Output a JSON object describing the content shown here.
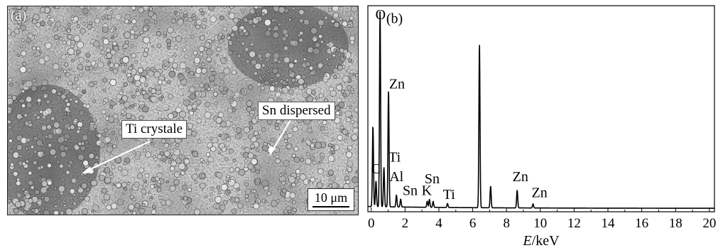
{
  "panel_a": {
    "label": "(a)",
    "annotations": {
      "ti": "Ti crystale",
      "sn": "Sn dispersed"
    },
    "scale_bar": "10 μm"
  },
  "chart_data": {
    "type": "line",
    "panel_label": "(b)",
    "title": "",
    "xlabel": "E/keV",
    "ylabel": "",
    "xlim": [
      -0.2,
      20.3
    ],
    "ylim": [
      0,
      100
    ],
    "xticks": [
      0,
      2,
      4,
      6,
      8,
      10,
      12,
      14,
      16,
      18,
      20
    ],
    "grid": false,
    "peaks": [
      {
        "x": 0.1,
        "y": 41
      },
      {
        "x": 0.28,
        "y": 13
      },
      {
        "x": 0.52,
        "y": 100
      },
      {
        "x": 0.75,
        "y": 20
      },
      {
        "x": 1.02,
        "y": 59
      },
      {
        "x": 1.49,
        "y": 6
      },
      {
        "x": 1.74,
        "y": 4
      },
      {
        "x": 3.31,
        "y": 3
      },
      {
        "x": 3.44,
        "y": 4
      },
      {
        "x": 3.66,
        "y": 3
      },
      {
        "x": 4.51,
        "y": 2
      },
      {
        "x": 6.4,
        "y": 83
      },
      {
        "x": 7.06,
        "y": 11
      },
      {
        "x": 8.63,
        "y": 9
      },
      {
        "x": 9.57,
        "y": 2
      }
    ],
    "peak_labels": [
      {
        "text": "O",
        "x": 0.55,
        "y": 96
      },
      {
        "text": "Zn",
        "x": 1.52,
        "y": 61
      },
      {
        "text": "Ti",
        "x": 1.38,
        "y": 24
      },
      {
        "text": "C",
        "x": 0.27,
        "y": 18
      },
      {
        "text": "Al",
        "x": 1.49,
        "y": 14
      },
      {
        "text": "Sn",
        "x": 3.6,
        "y": 13
      },
      {
        "text": "Sn",
        "x": 2.3,
        "y": 7
      },
      {
        "text": "K",
        "x": 3.28,
        "y": 7
      },
      {
        "text": "Ti",
        "x": 4.6,
        "y": 5
      },
      {
        "text": "Zn",
        "x": 8.82,
        "y": 14
      },
      {
        "text": "Zn",
        "x": 9.95,
        "y": 6
      }
    ]
  }
}
